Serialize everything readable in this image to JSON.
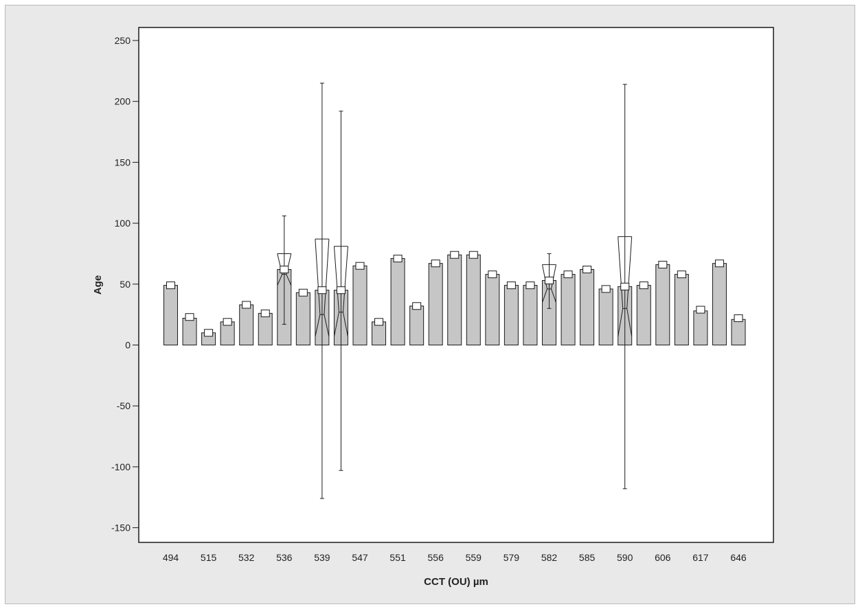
{
  "chart_data": {
    "type": "bar",
    "title": "",
    "xlabel": "CCT (OU) µm",
    "ylabel": "Age",
    "ylim": [
      -160,
      260
    ],
    "yticks": [
      250,
      200,
      150,
      100,
      50,
      0,
      -50,
      -100,
      -150
    ],
    "x_tick_labels": [
      "494",
      "515",
      "532",
      "536",
      "539",
      "547",
      "551",
      "556",
      "559",
      "579",
      "582",
      "585",
      "590",
      "606",
      "617",
      "646"
    ],
    "x_tick_positions": [
      0,
      2,
      4,
      6,
      8,
      10,
      12,
      14,
      16,
      18,
      20,
      22,
      24,
      26,
      28,
      30
    ],
    "n_bars": 31,
    "bar_values": [
      49,
      22,
      10,
      19,
      33,
      26,
      62,
      43,
      45,
      45,
      65,
      19,
      71,
      32,
      67,
      74,
      74,
      58,
      49,
      49,
      53,
      58,
      62,
      46,
      48,
      49,
      66,
      58,
      28,
      67,
      21
    ],
    "marker_values": [
      49,
      23,
      10,
      19,
      33,
      26,
      62,
      43,
      45,
      45,
      65,
      19,
      71,
      32,
      67,
      74,
      74,
      58,
      49,
      49,
      53,
      58,
      62,
      46,
      48,
      49,
      66,
      58,
      29,
      67,
      22
    ],
    "error_bars": [
      {
        "index": 6,
        "low": 17,
        "high": 106,
        "notch_low": 49,
        "notch_high": 75,
        "median": 58
      },
      {
        "index": 8,
        "low": -126,
        "high": 215,
        "notch_low": 7,
        "notch_high": 87,
        "median": 25
      },
      {
        "index": 9,
        "low": -103,
        "high": 192,
        "notch_low": 7,
        "notch_high": 81,
        "median": 27
      },
      {
        "index": 20,
        "low": 30,
        "high": 75,
        "notch_low": 35,
        "notch_high": 66,
        "median": 46
      },
      {
        "index": 24,
        "low": -118,
        "high": 214,
        "notch_low": 7,
        "notch_high": 89,
        "median": 30
      }
    ],
    "grid": false,
    "legend": "none",
    "colors": {
      "bar_fill": "#c6c6c6",
      "stroke": "#1a1a1a",
      "plot_bg": "#ffffff",
      "outer_bg": "#e9e9ea"
    }
  }
}
